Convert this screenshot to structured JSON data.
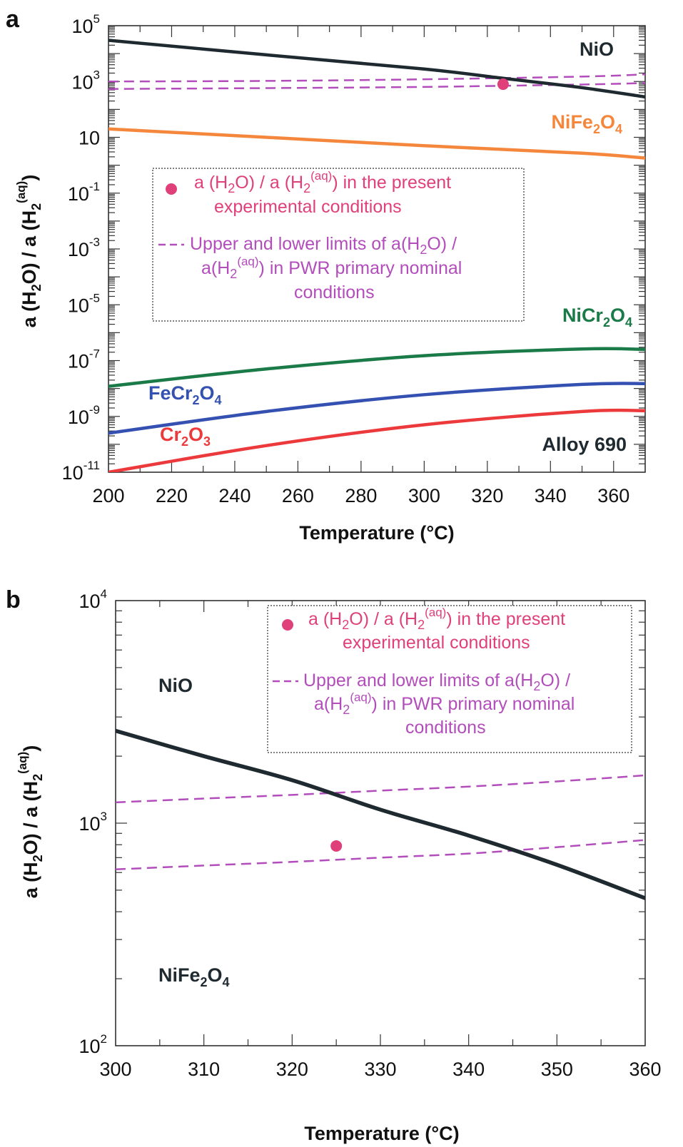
{
  "colors": {
    "NiO": "#1e2a30",
    "NiFe2O4": "#f4873c",
    "NiCr2O4": "#1a7a48",
    "FeCr2O4": "#3451b2",
    "Cr2O3": "#ec3a3c",
    "point": "#e0407a",
    "pwr": "#b24dbb"
  },
  "chart_data": [
    {
      "panel": "a",
      "type": "line",
      "log_y": true,
      "xlabel": "Temperature (°C)",
      "ylabel": "a (H2O) / a (H2(aq))",
      "xlim": [
        200,
        370
      ],
      "ylim": [
        1e-11,
        100000.0
      ],
      "x_ticks": [
        200,
        220,
        240,
        260,
        280,
        300,
        320,
        340,
        360
      ],
      "y_tick_labels": [
        {
          "base": "10",
          "exp": "5"
        },
        {
          "base": "10",
          "exp": "3"
        },
        {
          "base": "10",
          "exp": ""
        },
        {
          "base": "10",
          "exp": "-1"
        },
        {
          "base": "10",
          "exp": "-3"
        },
        {
          "base": "10",
          "exp": "-5"
        },
        {
          "base": "10",
          "exp": "-7"
        },
        {
          "base": "10",
          "exp": "-9"
        },
        {
          "base": "10",
          "exp": "-11"
        }
      ],
      "series": [
        {
          "name": "NiO",
          "color_key": "NiO",
          "x": [
            200,
            250,
            300,
            325,
            350,
            370
          ],
          "y": [
            30000,
            9000,
            2800,
            1300,
            600,
            280
          ]
        },
        {
          "name": "NiFe2O4",
          "color_key": "NiFe2O4",
          "x": [
            200,
            250,
            300,
            350,
            370
          ],
          "y": [
            20,
            10,
            5,
            2.7,
            1.8
          ]
        },
        {
          "name": "NiCr2O4",
          "color_key": "NiCr2O4",
          "x": [
            200,
            250,
            300,
            350,
            370
          ],
          "y": [
            1.2e-08,
            5e-08,
            1.5e-07,
            2.6e-07,
            2.5e-07
          ]
        },
        {
          "name": "FeCr2O4",
          "color_key": "FeCr2O4",
          "x": [
            200,
            250,
            300,
            350,
            370
          ],
          "y": [
            2.5e-10,
            1.5e-09,
            6e-09,
            1.4e-08,
            1.5e-08
          ]
        },
        {
          "name": "Cr2O3",
          "color_key": "Cr2O3",
          "x": [
            200,
            250,
            300,
            350,
            370
          ],
          "y": [
            1e-11,
            9e-11,
            5e-10,
            1.5e-09,
            1.6e-09
          ]
        }
      ],
      "pwr_limits": [
        {
          "x": [
            200,
            250,
            300,
            350,
            370
          ],
          "y": [
            1000,
            1050,
            1200,
            1500,
            1800
          ]
        },
        {
          "x": [
            200,
            250,
            300,
            350,
            370
          ],
          "y": [
            540,
            580,
            640,
            780,
            880
          ]
        }
      ],
      "experimental_point": {
        "x": 325,
        "y": 800
      },
      "curve_labels": [
        {
          "text": "NiO",
          "sub": "",
          "color_key": "NiO"
        },
        {
          "text": "NiFe",
          "sub": "2",
          "text2": "O",
          "sub2": "4",
          "color_key": "NiFe2O4"
        },
        {
          "text": "NiCr",
          "sub": "2",
          "text2": "O",
          "sub2": "4",
          "color_key": "NiCr2O4"
        },
        {
          "text": "FeCr",
          "sub": "2",
          "text2": "O",
          "sub2": "4",
          "color_key": "FeCr2O4"
        },
        {
          "text": "Cr",
          "sub": "2",
          "text2": "O",
          "sub2": "3",
          "color_key": "Cr2O3"
        }
      ],
      "annotation": "Alloy 690"
    },
    {
      "panel": "b",
      "type": "line",
      "log_y": true,
      "xlabel": "Temperature (°C)",
      "ylabel": "a (H2O) / a (H2(aq))",
      "xlim": [
        300,
        360
      ],
      "ylim": [
        100,
        10000
      ],
      "x_ticks": [
        300,
        310,
        320,
        330,
        340,
        350,
        360
      ],
      "y_tick_labels": [
        {
          "base": "10",
          "exp": "4"
        },
        {
          "base": "10",
          "exp": "3"
        },
        {
          "base": "10",
          "exp": "2"
        }
      ],
      "series": [
        {
          "name": "NiO",
          "color_key": "NiO",
          "x": [
            300,
            310,
            320,
            330,
            340,
            350,
            360
          ],
          "y": [
            2600,
            2000,
            1560,
            1150,
            880,
            650,
            460
          ]
        }
      ],
      "pwr_limits": [
        {
          "x": [
            300,
            310,
            320,
            330,
            340,
            350,
            360
          ],
          "y": [
            1240,
            1290,
            1340,
            1400,
            1460,
            1540,
            1640
          ]
        },
        {
          "x": [
            300,
            310,
            320,
            330,
            340,
            350,
            360
          ],
          "y": [
            620,
            645,
            670,
            700,
            730,
            780,
            840
          ]
        }
      ],
      "experimental_point": {
        "x": 325,
        "y": 790
      },
      "region_labels": [
        {
          "text": "NiO",
          "sub": ""
        },
        {
          "text": "NiFe",
          "sub": "2",
          "text2": "O",
          "sub2": "4"
        }
      ]
    }
  ],
  "legend": {
    "point": {
      "line1": "a (H2O) / a (H2(aq)) in the present",
      "line2": "experimental conditions"
    },
    "dashed": {
      "line1": "Upper and lower limits of a(H2O) /",
      "line2": "a(H2(aq)) in PWR primary nominal",
      "line3": "conditions"
    }
  },
  "panel_letters": [
    "a",
    "b"
  ]
}
